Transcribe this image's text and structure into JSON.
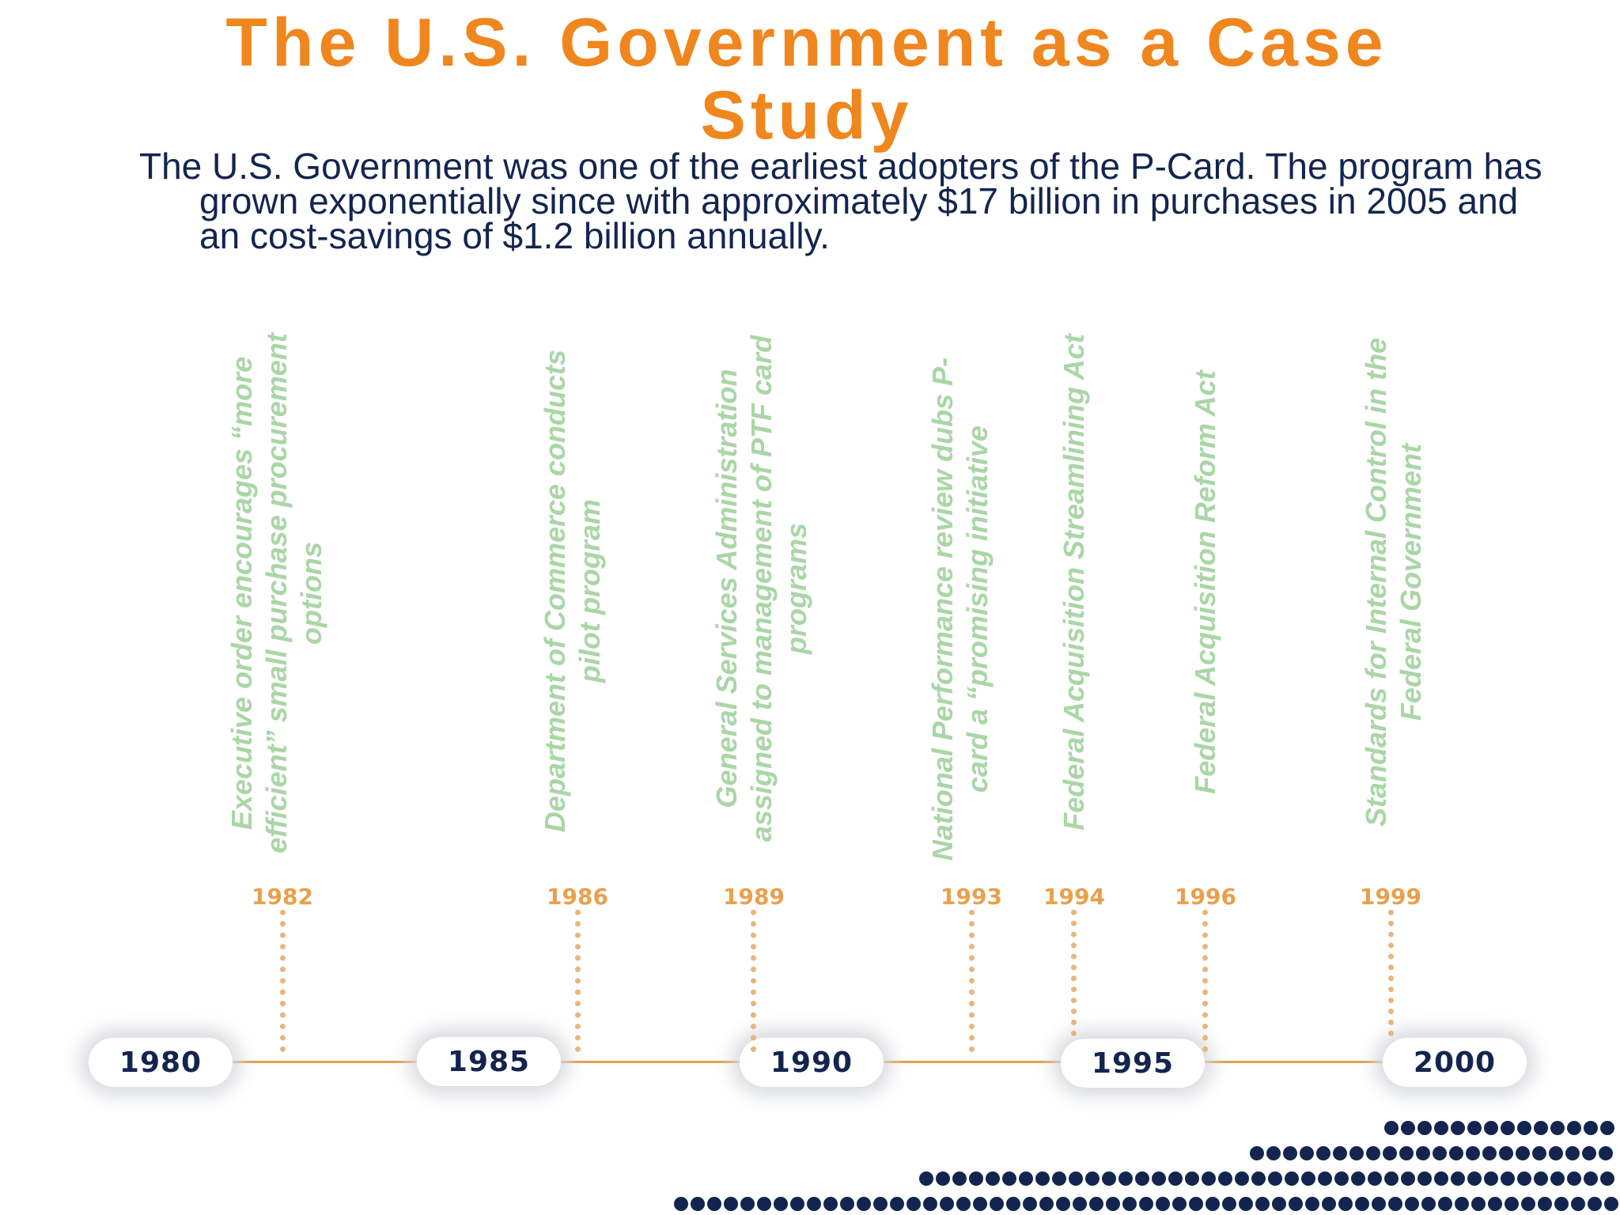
{
  "title": "The U.S. Government as a Case Study",
  "intro": "The U.S. Government was one of the earliest adopters of the P-Card. The program has grown exponentially since with approximately $17 billion in purchases in 2005 and an cost-savings of $1.2 billion annually.",
  "timeline": {
    "decades": [
      "1980",
      "1985",
      "1990",
      "1995",
      "2000"
    ],
    "events": [
      {
        "year": "1982",
        "text": "Executive order encourages “more efficient” small purchase procurement options"
      },
      {
        "year": "1986",
        "text": "Department of Commerce conducts pilot program"
      },
      {
        "year": "1989",
        "text": "General Services Administration assigned to management of PTF card programs"
      },
      {
        "year": "1993",
        "text": "National Performance review dubs P-card a “promising initiative"
      },
      {
        "year": "1994",
        "text": "Federal Acquisition Streamlining Act"
      },
      {
        "year": "1996",
        "text": "Federal Acquisition Reform Act"
      },
      {
        "year": "1999",
        "text": "Standards for Internal Control  in the Federal Government"
      }
    ]
  },
  "colors": {
    "title": "#f0861e",
    "body_text": "#13254f",
    "event_text": "#aad6a6",
    "year_label": "#e9a04c",
    "axis": "#e2a04a",
    "dots": "#13254f"
  }
}
